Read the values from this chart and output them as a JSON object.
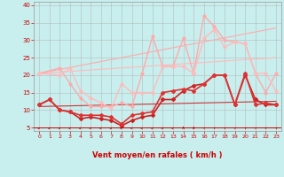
{
  "title": "",
  "xlabel": "Vent moyen/en rafales ( km/h )",
  "bg_color": "#c8eeee",
  "grid_color": "#b0b0b0",
  "xlim": [
    -0.5,
    23.5
  ],
  "ylim": [
    4,
    41
  ],
  "yticks": [
    5,
    10,
    15,
    20,
    25,
    30,
    35,
    40
  ],
  "xticks": [
    0,
    1,
    2,
    3,
    4,
    5,
    6,
    7,
    8,
    9,
    10,
    11,
    12,
    13,
    14,
    15,
    16,
    17,
    18,
    19,
    20,
    21,
    22,
    23
  ],
  "series": [
    {
      "x": [
        0,
        2,
        3,
        4,
        5,
        6,
        7,
        8,
        9,
        10,
        11,
        12,
        13,
        14,
        15,
        16,
        17,
        18,
        19,
        20,
        21,
        22,
        23
      ],
      "y": [
        20.5,
        22,
        17.5,
        13.5,
        11,
        11,
        11,
        12,
        11,
        20.5,
        31,
        22.5,
        22.5,
        30.5,
        20.5,
        37,
        34,
        30,
        29.5,
        29,
        20.5,
        15,
        20.5
      ],
      "color": "#ffaaaa",
      "lw": 1.0,
      "marker": "o",
      "ms": 2
    },
    {
      "x": [
        0,
        2,
        3,
        4,
        5,
        6,
        7,
        8,
        9,
        10,
        11,
        12,
        13,
        14,
        15,
        16,
        17,
        18,
        19,
        20,
        21,
        22,
        23
      ],
      "y": [
        20.5,
        20,
        22,
        15.5,
        13.5,
        12,
        10.5,
        17.5,
        15,
        15,
        15,
        22.5,
        22.5,
        22.5,
        20.5,
        30.5,
        33,
        28,
        29.5,
        29,
        20.5,
        20.5,
        15.5
      ],
      "color": "#ffbbbb",
      "lw": 1.0,
      "marker": "o",
      "ms": 2
    },
    {
      "x": [
        0,
        1,
        2,
        3,
        4,
        5,
        6,
        7,
        8,
        9,
        10,
        11,
        12,
        13,
        14,
        15,
        16,
        17,
        18,
        19,
        20,
        21,
        22,
        23
      ],
      "y": [
        11.5,
        13,
        10,
        9.5,
        7.5,
        8,
        7.5,
        7,
        5.5,
        7,
        8,
        8.5,
        13,
        13,
        15.5,
        17,
        17.5,
        20,
        20,
        11.5,
        20,
        13,
        11.5,
        11.5
      ],
      "color": "#cc2222",
      "lw": 1.2,
      "marker": "D",
      "ms": 2
    },
    {
      "x": [
        0,
        1,
        2,
        3,
        4,
        5,
        6,
        7,
        8,
        9,
        10,
        11,
        12,
        13,
        14,
        15,
        16,
        17,
        18,
        19,
        20,
        21,
        22,
        23
      ],
      "y": [
        11.5,
        13,
        10,
        9.5,
        8.5,
        8.5,
        8.5,
        8,
        6,
        8.5,
        9,
        9.5,
        15,
        15.5,
        16,
        15.5,
        17.5,
        20,
        20,
        11.5,
        20.5,
        11.5,
        12,
        11.5
      ],
      "color": "#dd3333",
      "lw": 1.2,
      "marker": "D",
      "ms": 2
    },
    {
      "x": [
        0,
        23
      ],
      "y": [
        11,
        12.5
      ],
      "color": "#cc3333",
      "lw": 0.8,
      "marker": null,
      "ms": 0
    },
    {
      "x": [
        0,
        23
      ],
      "y": [
        20.5,
        25
      ],
      "color": "#ffbbbb",
      "lw": 0.8,
      "marker": null,
      "ms": 0
    },
    {
      "x": [
        0,
        23
      ],
      "y": [
        20.5,
        33.5
      ],
      "color": "#ffaaaa",
      "lw": 0.8,
      "marker": null,
      "ms": 0
    }
  ],
  "arrow_data": {
    "x": [
      0,
      1,
      2,
      3,
      4,
      5,
      6,
      7,
      8,
      9,
      10,
      11,
      12,
      13,
      14,
      15,
      16,
      17,
      18,
      19,
      20,
      21,
      22,
      23
    ],
    "angles_deg": [
      180,
      180,
      180,
      180,
      180,
      180,
      180,
      180,
      180,
      180,
      180,
      180,
      180,
      180,
      90,
      90,
      45,
      45,
      45,
      45,
      45,
      45,
      45,
      45
    ]
  }
}
